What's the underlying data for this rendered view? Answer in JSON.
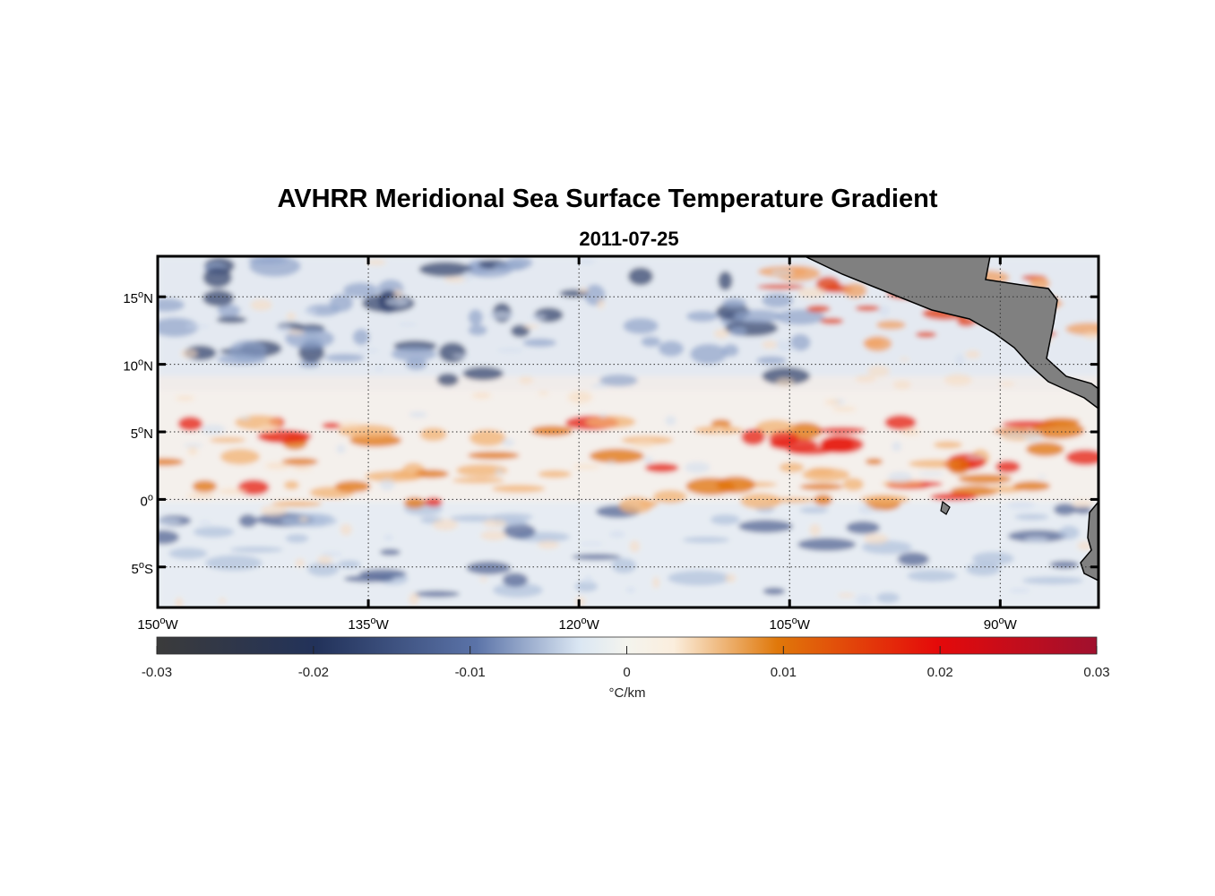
{
  "title": "AVHRR Meridional Sea Surface Temperature Gradient",
  "subtitle": "2011-07-25",
  "map": {
    "lon_range": [
      -150,
      -83
    ],
    "lat_range": [
      -8,
      18
    ],
    "grid": "dotted",
    "lon_ticks": [
      {
        "value": -150,
        "num": "150",
        "hemi": "W"
      },
      {
        "value": -135,
        "num": "135",
        "hemi": "W"
      },
      {
        "value": -120,
        "num": "120",
        "hemi": "W"
      },
      {
        "value": -105,
        "num": "105",
        "hemi": "W"
      },
      {
        "value": -90,
        "num": "90",
        "hemi": "W"
      }
    ],
    "lat_ticks": [
      {
        "value": 15,
        "num": "15",
        "hemi": "N"
      },
      {
        "value": 10,
        "num": "10",
        "hemi": "N"
      },
      {
        "value": 5,
        "num": "5",
        "hemi": "N"
      },
      {
        "value": 0,
        "num": "0",
        "hemi": ""
      },
      {
        "value": -5,
        "num": "5",
        "hemi": "S"
      }
    ],
    "degree_symbol": "o",
    "land_color": "#808080"
  },
  "colorbar": {
    "range": [
      -0.03,
      0.03
    ],
    "ticks": [
      {
        "value": -0.03,
        "label": "-0.03"
      },
      {
        "value": -0.02,
        "label": "-0.02"
      },
      {
        "value": -0.01,
        "label": "-0.01"
      },
      {
        "value": 0,
        "label": "0"
      },
      {
        "value": 0.01,
        "label": "0.01"
      },
      {
        "value": 0.02,
        "label": "0.02"
      },
      {
        "value": 0.03,
        "label": "0.03"
      }
    ],
    "unit_label": "°C/km",
    "colors": [
      "#3b3b3b",
      "#22325a",
      "#5b73a8",
      "#dbe7f3",
      "#fbeedd",
      "#e0780a",
      "#e50a0a",
      "#a0102e"
    ]
  }
}
